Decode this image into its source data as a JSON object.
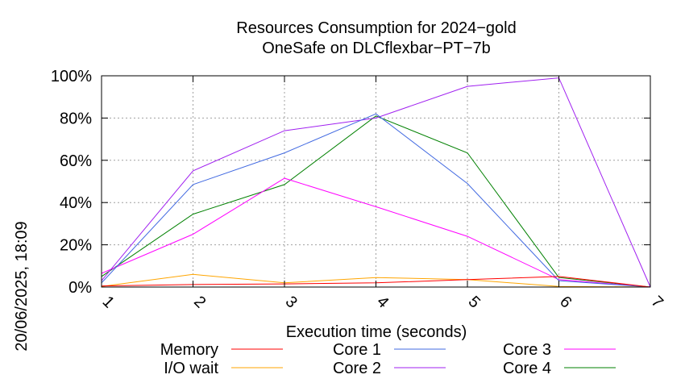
{
  "chart_data": {
    "type": "line",
    "title": "Resources Consumption for 2024−gold",
    "subtitle": "OneSafe on DLCflexbar−PT−7b",
    "xlabel": "Execution time (seconds)",
    "ylabel": "",
    "side_label": "20/06/2025, 18:09",
    "x": [
      1,
      2,
      3,
      4,
      5,
      6,
      7
    ],
    "x_tick_labels": [
      "1",
      "2",
      "3",
      "4",
      "5",
      "6",
      "7"
    ],
    "xlim": [
      1,
      7
    ],
    "ylim": [
      0,
      100
    ],
    "y_ticks": [
      0,
      20,
      40,
      60,
      80,
      100
    ],
    "y_tick_labels": [
      "0%",
      "20%",
      "40%",
      "60%",
      "80%",
      "100%"
    ],
    "grid": true,
    "legend_position": "bottom",
    "series": [
      {
        "name": "Memory",
        "color": "#ff0000",
        "values": [
          0.5,
          1.2,
          1.5,
          2,
          3.5,
          5,
          0
        ]
      },
      {
        "name": "I/O wait",
        "color": "#ffa500",
        "values": [
          0.3,
          6,
          2,
          4.5,
          3.5,
          0.3,
          0
        ]
      },
      {
        "name": "Core 1",
        "color": "#4169e1",
        "values": [
          2,
          48.5,
          63.5,
          82,
          49,
          3,
          0
        ]
      },
      {
        "name": "Core 2",
        "color": "#a020f0",
        "values": [
          3,
          55,
          74,
          80,
          95,
          99,
          0
        ]
      },
      {
        "name": "Core 3",
        "color": "#ff00ff",
        "values": [
          6.5,
          25,
          51.5,
          38,
          24,
          3.5,
          0
        ]
      },
      {
        "name": "Core 4",
        "color": "#008000",
        "values": [
          5,
          34.5,
          48.5,
          81,
          63.5,
          4.5,
          0
        ]
      }
    ]
  }
}
